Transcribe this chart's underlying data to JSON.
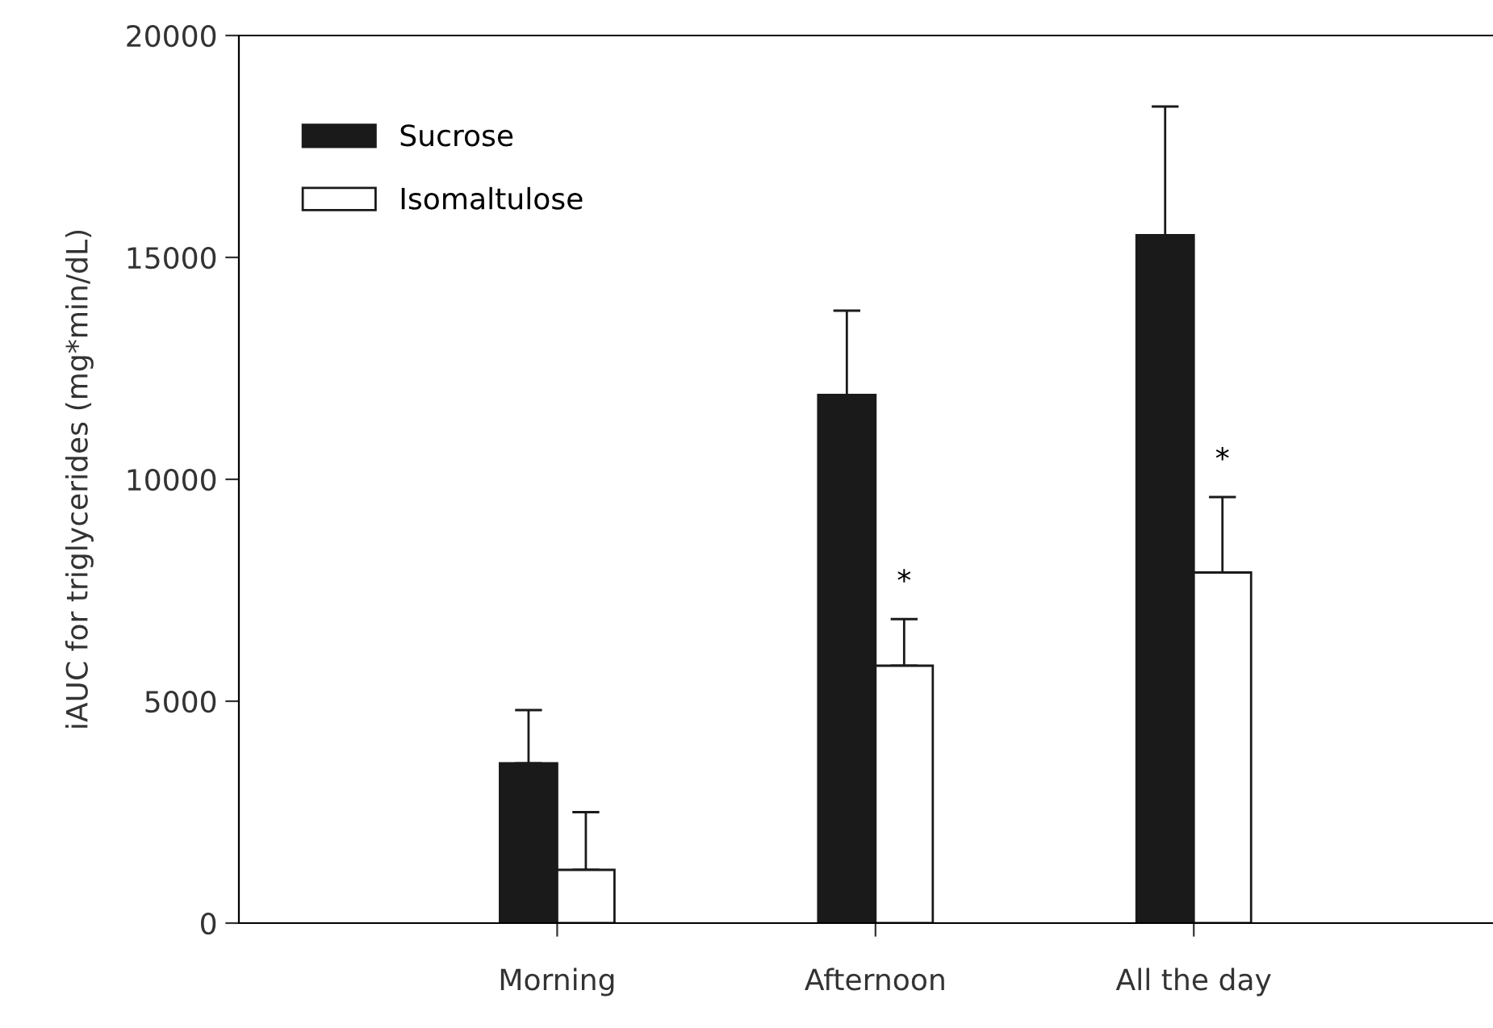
{
  "chart_data": {
    "type": "bar",
    "ylabel": "iAUC for triglycerides (mg*min/dL)",
    "categories": [
      "Morning",
      "Afternoon",
      "All the day"
    ],
    "series": [
      {
        "name": "Sucrose",
        "color": "#1a1a1a",
        "values": [
          3600,
          11900,
          15500
        ],
        "errors": [
          [
            3600,
            4800
          ],
          [
            11900,
            13800
          ],
          [
            15500,
            18400
          ]
        ]
      },
      {
        "name": "Isomaltulose",
        "color": "#ffffff",
        "values": [
          1200,
          5800,
          7900
        ],
        "errors": [
          [
            1200,
            2500
          ],
          [
            5800,
            6850
          ],
          [
            7900,
            9600
          ]
        ]
      }
    ],
    "annotations": [
      {
        "text": "*",
        "x": "Afternoon",
        "y": 6850
      },
      {
        "text": "*",
        "x": "All the day",
        "y": 9600
      }
    ],
    "ylim": [
      0,
      20000
    ],
    "yticks": [
      0,
      5000,
      10000,
      15000,
      20000
    ],
    "grid": false,
    "legend": "top left"
  }
}
